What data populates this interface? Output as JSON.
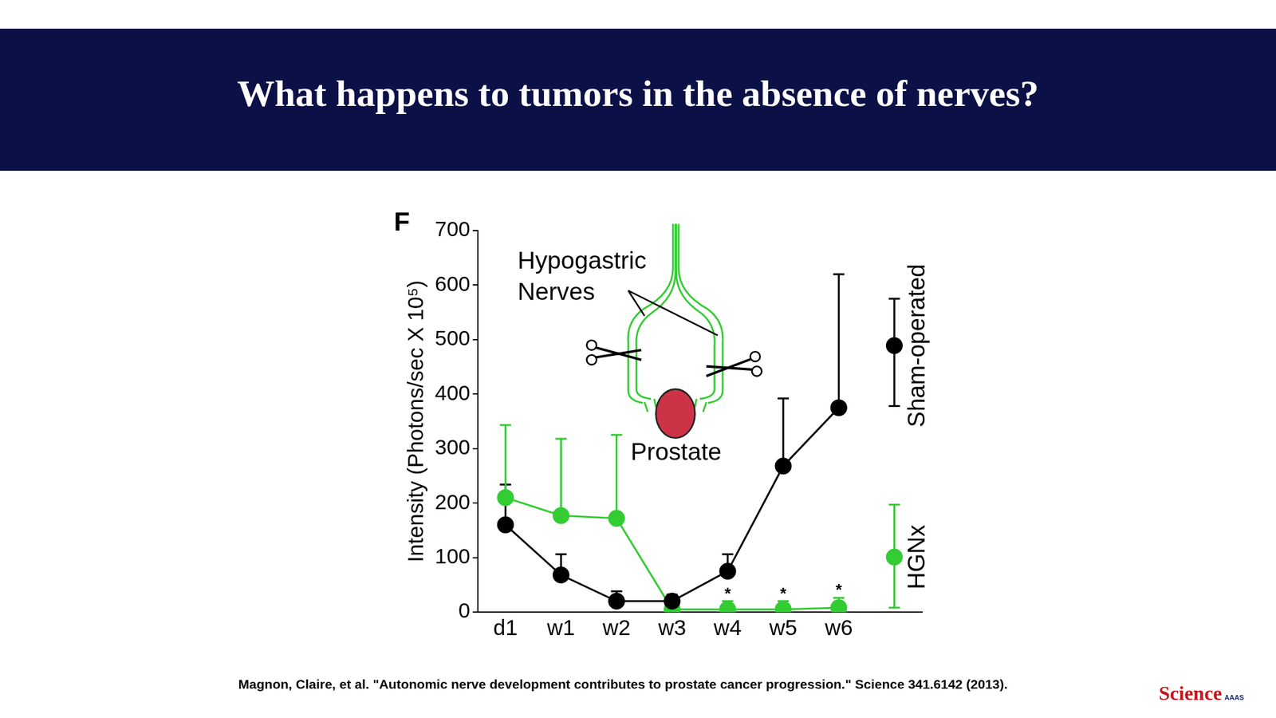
{
  "header": {
    "title": "What happens to tumors in the absence of nerves?"
  },
  "panel_label": "F",
  "chart_data": {
    "type": "line",
    "y_label": "Intensity (Photons/sec X 10⁵)",
    "categories": [
      "d1",
      "w1",
      "w2",
      "w3",
      "w4",
      "w5",
      "w6",
      null
    ],
    "series": [
      {
        "name": "Sham-operated",
        "color": "#000000",
        "marker": "circle",
        "values": [
          160,
          68,
          20,
          20,
          75,
          268,
          375,
          489
        ],
        "error_plus": [
          74,
          38,
          18,
          12,
          31,
          124,
          245,
          86
        ],
        "error_minus": [
          0,
          0,
          0,
          0,
          0,
          0,
          0,
          111
        ]
      },
      {
        "name": "HGNx",
        "color": "#33cc33",
        "marker": "circle",
        "values": [
          210,
          177,
          172,
          5,
          5,
          5,
          8,
          101
        ],
        "error_plus": [
          133,
          141,
          153,
          25,
          15,
          15,
          18,
          96
        ],
        "error_minus": [
          0,
          0,
          0,
          0,
          0,
          0,
          0,
          93
        ]
      }
    ],
    "annotations": [
      {
        "text": "*",
        "category": "w4"
      },
      {
        "text": "*",
        "category": "w5"
      },
      {
        "text": "*",
        "category": "w6"
      }
    ],
    "ylim": [
      0,
      700
    ],
    "yticks": [
      0,
      100,
      200,
      300,
      400,
      500,
      600,
      700
    ],
    "grid": false
  },
  "diagram": {
    "nerve_label": "Hypogastric Nerves",
    "organ_label": "Prostate"
  },
  "citation": "Magnon, Claire, et al. \"Autonomic nerve development contributes to prostate cancer progression.\" Science 341.6142 (2013).",
  "logo": {
    "text": "Science",
    "tag": "AAAS"
  }
}
